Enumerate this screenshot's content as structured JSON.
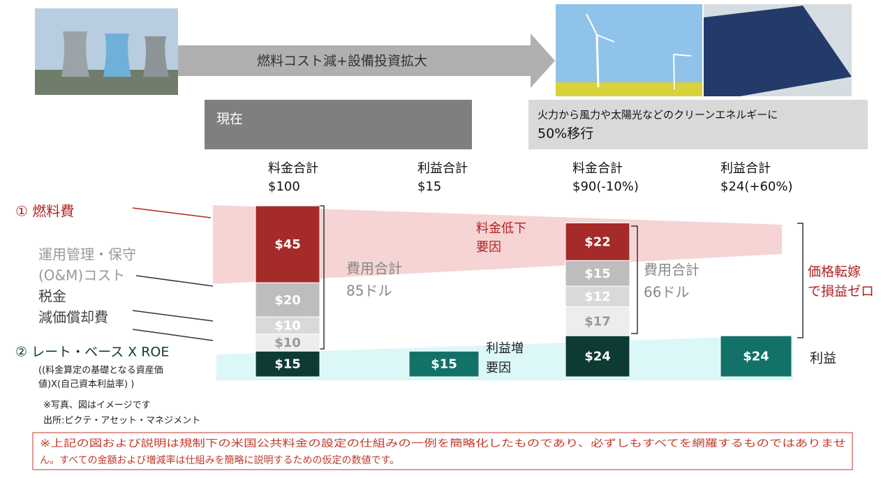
{
  "header": {
    "arrow_text": "燃料コスト減+設備投資拡大",
    "current": "現在",
    "future_line1": "火力から風力や太陽光などのクリーンエネルギーに",
    "future_line2": "50%移行"
  },
  "columns": [
    {
      "header": "料金合計",
      "total": "$100",
      "segments": [
        {
          "value": 45,
          "label": "$45",
          "color": "#a52a2a"
        },
        {
          "value": 20,
          "label": "$20",
          "color": "#bdbdbd"
        },
        {
          "value": 10,
          "label": "$10",
          "color": "#d9d9d9"
        },
        {
          "value": 10,
          "label": "$10",
          "color": "#ededed"
        },
        {
          "value": 15,
          "label": "$15",
          "color": "#0d3b34"
        }
      ]
    },
    {
      "header": "利益合計",
      "total": "$15",
      "segments": [
        {
          "value": 15,
          "label": "$15",
          "color": "#137268"
        }
      ]
    },
    {
      "header": "料金合計",
      "total": "$90(-10%)",
      "segments": [
        {
          "value": 22,
          "label": "$22",
          "color": "#a52a2a"
        },
        {
          "value": 15,
          "label": "$15",
          "color": "#bdbdbd"
        },
        {
          "value": 12,
          "label": "$12",
          "color": "#d9d9d9"
        },
        {
          "value": 17,
          "label": "$17",
          "color": "#ededed"
        },
        {
          "value": 24,
          "label": "$24",
          "color": "#0d3b34"
        }
      ]
    },
    {
      "header": "利益合計",
      "total": "$24(+60%)",
      "segments": [
        {
          "value": 24,
          "label": "$24",
          "color": "#137268"
        }
      ]
    }
  ],
  "left_labels": {
    "fuel": "① 燃料費",
    "om1": "運用管理・保守",
    "om2": "(O&M)コスト",
    "tax": "税金",
    "depreciation": "減価償却費",
    "rate_base": "② レート・ベース X ROE",
    "rate_note1": "((料金算定の基礎となる資産価",
    "rate_note2": "値)X(自己資本利益率) )"
  },
  "annotations": {
    "cost1_a": "費用合計",
    "cost1_b": "85ドル",
    "cost2_a": "費用合計",
    "cost2_b": "66ドル",
    "down_a": "料金低下",
    "down_b": "要因",
    "up_a": "利益増",
    "up_b": "要因",
    "pass_a": "価格転嫁",
    "pass_b": "で損益ゼロ",
    "profit": "利益"
  },
  "notes": {
    "photo": "※写真、図はイメージです",
    "source": "出所:ピクテ・アセット・マネジメント"
  },
  "disclaimer": {
    "line1": "※上記の図および説明は規制下の米国公共料金の設定の仕組みの一例を簡略化したものであり、必ずしもすべてを網羅するものではありませ",
    "line2": "ん。すべての金額および増減率は仕組みを簡略に説明するための仮定の数値です。"
  }
}
